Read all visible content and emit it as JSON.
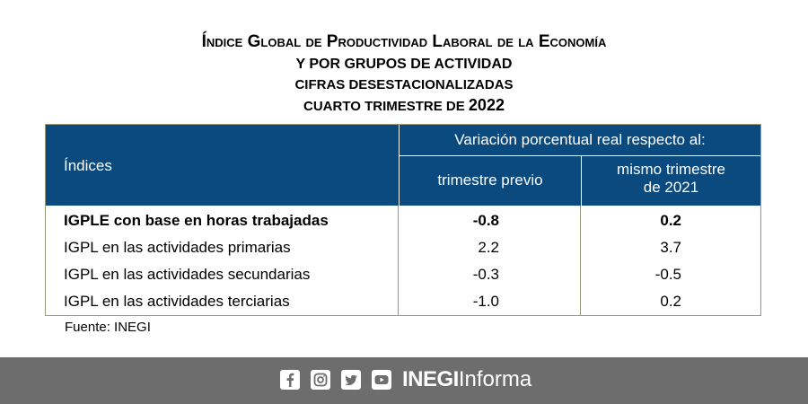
{
  "title": {
    "line1": "Índice Global de Productividad Laboral de la Economía",
    "line2": "Y POR GRUPOS DE ACTIVIDAD",
    "line3": "CIFRAS DESESTACIONALIZADAS",
    "line4_prefix": "CUARTO TRIMESTRE DE ",
    "line4_year": "2022"
  },
  "table": {
    "header": {
      "label_col": "Índices",
      "group": "Variación porcentual real respecto al:",
      "col1": "trimestre previo",
      "col2_line1": "mismo trimestre",
      "col2_line2": "de 2021"
    },
    "rows": [
      {
        "label": "IGPLE con base en horas trabajadas",
        "prev": "-0.8",
        "same": "0.2"
      },
      {
        "label": "IGPL en las actividades primarias",
        "prev": "2.2",
        "same": "3.7"
      },
      {
        "label": "IGPL en las actividades secundarias",
        "prev": "-0.3",
        "same": "-0.5"
      },
      {
        "label": "IGPL en las actividades terciarias",
        "prev": "-1.0",
        "same": "0.2"
      }
    ]
  },
  "source": "Fuente: INEGI",
  "footer": {
    "brand_bold": "INEGI",
    "brand_regular": "Informa",
    "icons": [
      "facebook-icon",
      "instagram-icon",
      "twitter-icon",
      "youtube-icon"
    ],
    "bg_color": "#6d6d6d"
  },
  "colors": {
    "header_bg": "#0b4a7e",
    "border": "#9a9a7a"
  }
}
